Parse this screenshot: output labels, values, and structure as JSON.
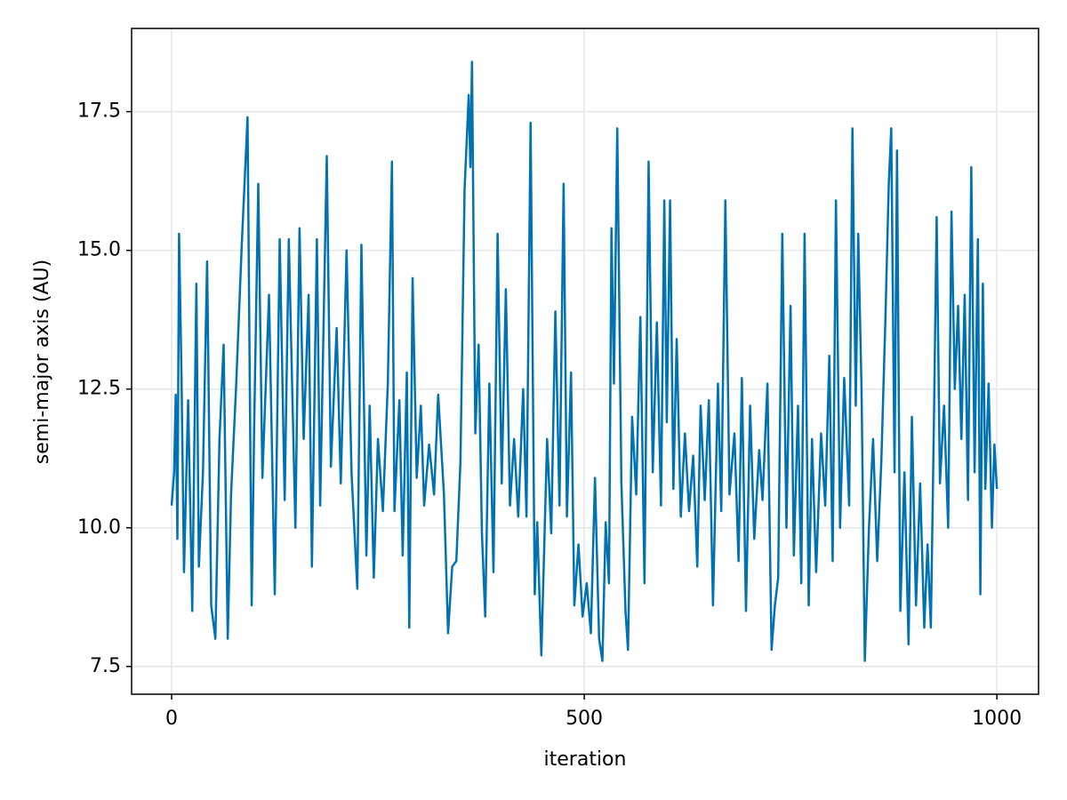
{
  "chart_data": {
    "type": "line",
    "x_label": "iteration",
    "y_label": "semi-major axis (AU)",
    "x": [
      0,
      3,
      5,
      7,
      9,
      12,
      15,
      20,
      25,
      30,
      33,
      38,
      43,
      48,
      53,
      58,
      63,
      68,
      72,
      78,
      85,
      92,
      97,
      100,
      105,
      110,
      118,
      125,
      131,
      137,
      142,
      150,
      155,
      160,
      166,
      170,
      176,
      180,
      188,
      193,
      200,
      205,
      212,
      218,
      225,
      230,
      236,
      240,
      245,
      250,
      256,
      262,
      267,
      270,
      276,
      280,
      285,
      288,
      292,
      297,
      302,
      306,
      312,
      318,
      323,
      330,
      335,
      340,
      345,
      350,
      355,
      360,
      362,
      364,
      368,
      372,
      376,
      380,
      385,
      390,
      395,
      400,
      405,
      410,
      415,
      420,
      426,
      430,
      435,
      440,
      443,
      448,
      455,
      460,
      465,
      470,
      475,
      479,
      484,
      488,
      493,
      498,
      503,
      508,
      513,
      518,
      522,
      526,
      530,
      533,
      536,
      540,
      545,
      550,
      553,
      558,
      563,
      568,
      573,
      578,
      583,
      588,
      593,
      597,
      600,
      604,
      608,
      612,
      617,
      622,
      627,
      632,
      637,
      641,
      646,
      651,
      656,
      662,
      666,
      671,
      676,
      682,
      687,
      691,
      696,
      701,
      706,
      712,
      716,
      722,
      727,
      731,
      735,
      740,
      745,
      750,
      754,
      759,
      763,
      767,
      772,
      776,
      781,
      787,
      792,
      797,
      801,
      805,
      810,
      815,
      821,
      825,
      829,
      832,
      836,
      840,
      845,
      850,
      855,
      860,
      865,
      869,
      872,
      876,
      879,
      883,
      888,
      893,
      897,
      902,
      907,
      912,
      916,
      920,
      924,
      927,
      931,
      936,
      941,
      945,
      949,
      953,
      957,
      961,
      965,
      969,
      973,
      977,
      980,
      983,
      986,
      990,
      994,
      997,
      1000
    ],
    "series": [
      {
        "name": "semi-major axis",
        "color": "#0072b2",
        "values": [
          10.4,
          11.0,
          12.4,
          9.8,
          15.3,
          12.7,
          9.2,
          12.3,
          8.5,
          14.4,
          9.3,
          11.0,
          14.8,
          8.6,
          8.0,
          11.6,
          13.3,
          8.0,
          10.6,
          12.5,
          15.1,
          17.4,
          8.6,
          11.8,
          16.2,
          10.9,
          14.2,
          8.8,
          15.2,
          10.5,
          15.2,
          10.0,
          15.4,
          11.6,
          14.2,
          9.3,
          15.2,
          10.4,
          16.7,
          11.1,
          13.6,
          10.8,
          15.0,
          11.0,
          8.9,
          15.1,
          9.5,
          12.2,
          9.1,
          11.6,
          10.3,
          12.6,
          16.6,
          10.3,
          12.3,
          9.5,
          12.8,
          8.2,
          14.5,
          10.9,
          12.2,
          10.4,
          11.5,
          10.6,
          12.4,
          10.6,
          8.1,
          9.3,
          9.4,
          11.2,
          16.1,
          17.8,
          16.5,
          18.4,
          11.7,
          13.3,
          9.9,
          8.4,
          12.6,
          9.2,
          15.3,
          10.8,
          14.3,
          10.4,
          11.6,
          10.2,
          12.5,
          10.2,
          17.3,
          8.8,
          10.1,
          7.7,
          11.6,
          9.9,
          13.9,
          10.4,
          16.2,
          10.2,
          12.8,
          8.6,
          9.7,
          8.4,
          9.0,
          8.1,
          10.9,
          8.0,
          7.6,
          10.1,
          9.0,
          15.4,
          12.6,
          17.2,
          10.8,
          8.5,
          7.8,
          12.0,
          10.6,
          13.8,
          9.0,
          16.6,
          11.0,
          13.7,
          10.4,
          15.9,
          11.9,
          15.9,
          10.7,
          13.4,
          10.2,
          11.7,
          10.3,
          11.3,
          9.3,
          12.2,
          10.5,
          12.3,
          8.6,
          12.6,
          10.3,
          15.9,
          10.6,
          11.7,
          9.4,
          12.7,
          8.5,
          12.2,
          9.8,
          11.4,
          10.5,
          12.6,
          7.8,
          8.6,
          9.1,
          15.3,
          10.0,
          14.0,
          9.5,
          12.2,
          9.0,
          15.3,
          8.6,
          11.6,
          9.2,
          11.7,
          10.4,
          13.1,
          9.4,
          15.9,
          10.0,
          12.7,
          10.4,
          17.2,
          12.2,
          15.3,
          12.5,
          7.6,
          10.0,
          11.6,
          9.4,
          11.2,
          13.8,
          16.2,
          17.2,
          11.0,
          16.8,
          8.5,
          11.0,
          7.9,
          12.0,
          8.6,
          10.8,
          8.2,
          9.7,
          8.2,
          12.2,
          15.6,
          10.8,
          12.2,
          10.0,
          15.7,
          12.5,
          14.0,
          11.6,
          14.2,
          10.5,
          16.5,
          11.0,
          15.2,
          8.8,
          14.4,
          10.7,
          12.6,
          10.0,
          11.5,
          10.7
        ]
      }
    ],
    "xlim": [
      -48.5,
      1050.5
    ],
    "xticks": [
      0,
      500,
      1000
    ],
    "ylim": [
      7.0,
      19.0
    ],
    "yticks": [
      7.5,
      {
        "value": 10,
        "label": "10.0"
      },
      12.5,
      {
        "value": 15,
        "label": "15.0"
      },
      17.5
    ],
    "grid": true
  }
}
